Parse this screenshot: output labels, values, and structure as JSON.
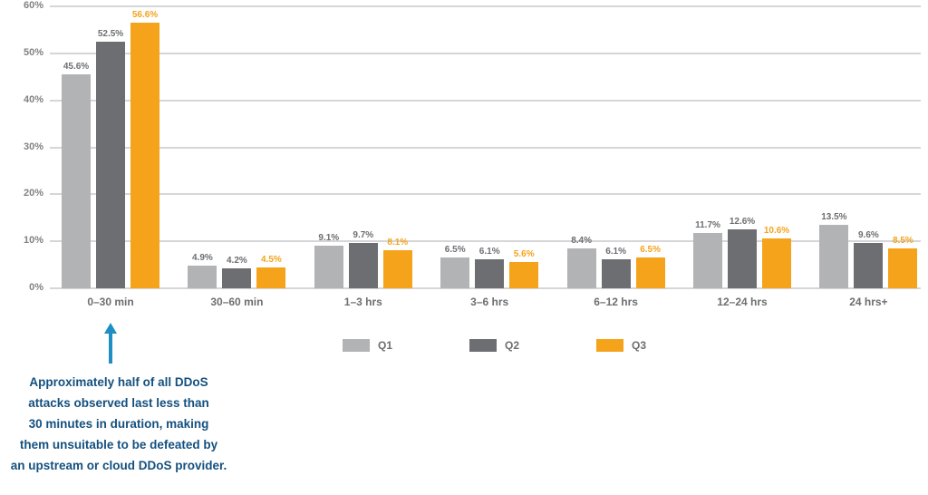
{
  "chart_data": {
    "type": "bar",
    "title": "",
    "xlabel": "",
    "ylabel": "",
    "ylim": [
      0,
      60
    ],
    "yticks": [
      0,
      10,
      20,
      30,
      40,
      50,
      60
    ],
    "ytick_suffix": "%",
    "grid": true,
    "legend_position": "bottom",
    "categories": [
      "0–30 min",
      "30–60 min",
      "1–3 hrs",
      "3–6 hrs",
      "6–12 hrs",
      "12–24 hrs",
      "24 hrs+"
    ],
    "series": [
      {
        "name": "Q1",
        "color": "#b1b3b5",
        "label_color": "#6d6e71",
        "values": [
          45.6,
          4.9,
          9.1,
          6.5,
          8.4,
          11.7,
          13.5
        ]
      },
      {
        "name": "Q2",
        "color": "#6d6e71",
        "label_color": "#6d6e71",
        "values": [
          52.5,
          4.2,
          9.7,
          6.1,
          6.1,
          12.6,
          9.6
        ]
      },
      {
        "name": "Q3",
        "color": "#f5a31b",
        "label_color": "#f5a31b",
        "values": [
          56.6,
          4.5,
          8.1,
          5.6,
          6.5,
          10.6,
          8.5
        ]
      }
    ],
    "value_label_format": "{value}%"
  },
  "annotation": {
    "text": "Approximately half of all DDoS\nattacks observed last less than\n30 minutes in duration, making\nthem unsuitable to be defeated by\nan upstream or cloud DDoS provider.",
    "text_color": "#14507f",
    "arrow_color": "#1e8fc4",
    "arrow_points_to_category": "0–30 min"
  },
  "colors": {
    "background": "#ffffff",
    "gridline": "#d6d6d8",
    "y_axis_label": "#818286",
    "category_label": "#6d6e71"
  }
}
